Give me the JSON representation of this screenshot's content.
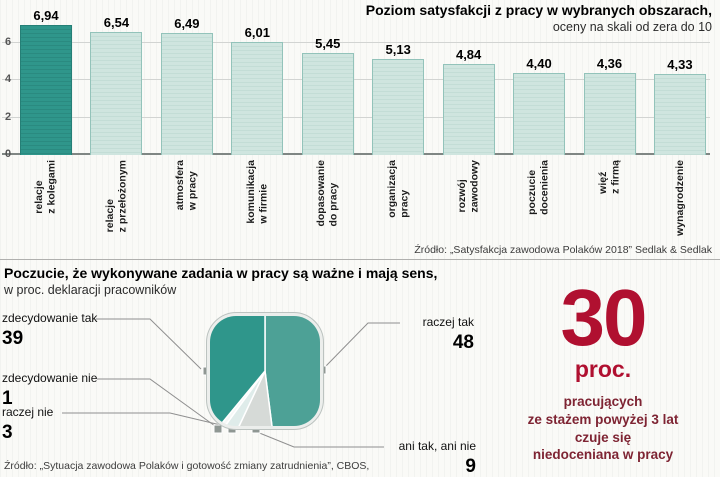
{
  "colors": {
    "highlight_bar": "#2f968b",
    "bar_fill": "#cfe5df",
    "bar_border": "#93c3ba",
    "accent_red": "#b01030",
    "maroon_text": "#7e2433"
  },
  "chart_data": [
    {
      "type": "bar",
      "title": "Poziom satysfakcji z pracy w wybranych obszarach,",
      "subtitle": "oceny na skali od zera do 10",
      "categories": [
        "relacje\nz kolegami",
        "relacje\nz przełożonym",
        "atmosfera\nw pracy",
        "komunikacja\nw firmie",
        "dopasowanie\ndo pracy",
        "organizacja\npracy",
        "rozwój\nzawodowy",
        "poczucie\ndocenienia",
        "więź\nz firmą",
        "wynagrodzenie"
      ],
      "values": [
        6.94,
        6.54,
        6.49,
        6.01,
        5.45,
        5.13,
        4.84,
        4.4,
        4.36,
        4.33
      ],
      "value_labels": [
        "6,94",
        "6,54",
        "6,49",
        "6,01",
        "5,45",
        "5,13",
        "4,84",
        "4,40",
        "4,36",
        "4,33"
      ],
      "highlight_index": 0,
      "ylim": [
        0,
        8
      ],
      "yticks": [
        0,
        2,
        4,
        6
      ],
      "grid": true,
      "legend": "none",
      "source": "Źródło: „Satysfakcja zawodowa Polaków 2018” Sedlak & Sedlak"
    },
    {
      "type": "pie",
      "title": "Poczucie, że wykonywane zadania w pracy są ważne i mają sens,",
      "subtitle": "w proc. deklaracji pracowników",
      "slices": [
        {
          "label": "raczej tak",
          "value": 48,
          "color": "#4da196"
        },
        {
          "label": "ani tak, ani nie",
          "value": 9,
          "color": "#d6dad7"
        },
        {
          "label": "raczej nie",
          "value": 3,
          "color": "#dfecea"
        },
        {
          "label": "zdecydowanie nie",
          "value": 1,
          "color": "#f6f8f7"
        },
        {
          "label": "zdecydowanie tak",
          "value": 39,
          "color": "#2f968b"
        }
      ],
      "start_angle_deg": 0,
      "clockwise": true,
      "source": "Źródło: „Sytuacja zawodowa Polaków i gotowość zmiany zatrudnienia”, CBOS,"
    }
  ],
  "callout": {
    "number": "30",
    "unit": "proc.",
    "lines": [
      "pracujących",
      "ze stażem powyżej 3 lat",
      "czuje się",
      "niedoceniana w pracy"
    ]
  }
}
